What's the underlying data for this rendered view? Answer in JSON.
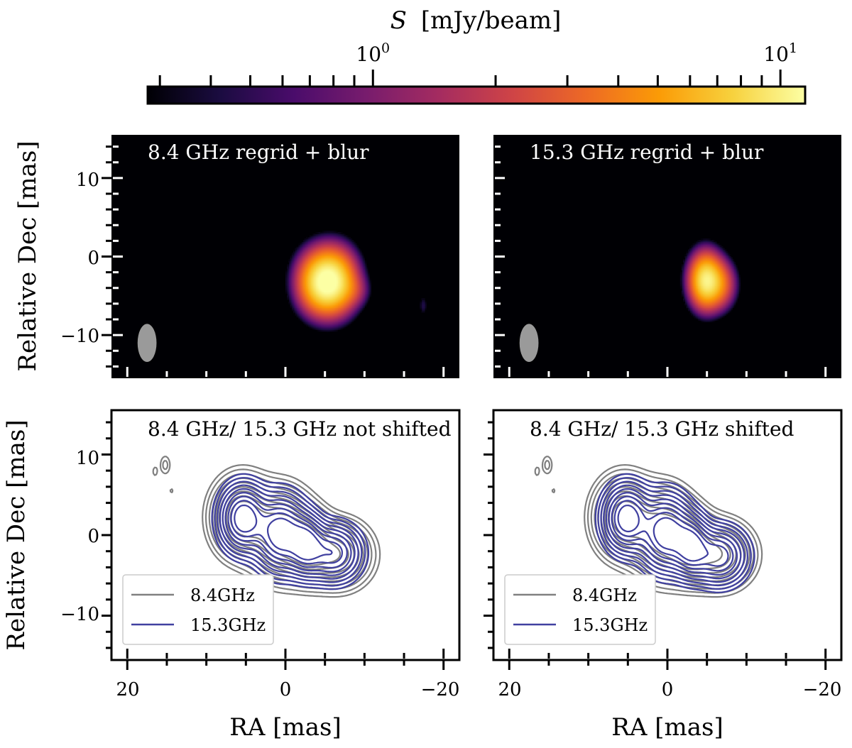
{
  "colorbar": {
    "label_symbol": "S",
    "label_unit": "[mJy/beam]",
    "range": [
      0.28,
      11.5
    ],
    "scale": "log",
    "colormap": "inferno",
    "major_ticks": [
      {
        "value": 1,
        "base": "10",
        "exp": "0"
      },
      {
        "value": 10,
        "base": "10",
        "exp": "1"
      }
    ],
    "minor_ticks": [
      0.3,
      0.4,
      0.5,
      0.6,
      0.7,
      0.8,
      0.9,
      2,
      3,
      4,
      5,
      6,
      7,
      8,
      9
    ]
  },
  "colormap_stops": [
    "#000004",
    "#1b0c41",
    "#4a0c6b",
    "#781c6d",
    "#a52c60",
    "#cf4446",
    "#ed6925",
    "#fb9b06",
    "#f7d13d",
    "#fcffa4"
  ],
  "chart_data": [
    {
      "type": "heatmap",
      "panel": "top-left",
      "annotation": "8.4 GHz regrid + blur",
      "ylabel": "Relative Dec [mas]",
      "xlim": [
        22,
        -22
      ],
      "ylim": [
        -15.5,
        15.5
      ],
      "xticks": [
        20,
        0,
        -20
      ],
      "yticks": [
        10,
        0,
        -10
      ],
      "ytick_labels": [
        "10",
        "0",
        "−10"
      ],
      "beam": {
        "x": 17.5,
        "y": -11,
        "major": 2.2,
        "minor": 1.0
      },
      "blobs": [
        {
          "x": -4.8,
          "y": -3.2,
          "sx": 1.8,
          "sy": 2.3,
          "peak": 11.0
        },
        {
          "x": -6.6,
          "y": -3.0,
          "sx": 1.6,
          "sy": 2.4,
          "peak": 4.0
        },
        {
          "x": -8.6,
          "y": -4.3,
          "sx": 1.2,
          "sy": 1.2,
          "peak": 0.9
        },
        {
          "x": -17.4,
          "y": -6.2,
          "sx": 0.4,
          "sy": 1.0,
          "peak": 0.45
        }
      ]
    },
    {
      "type": "heatmap",
      "panel": "top-right",
      "annotation": "15.3 GHz regrid + blur",
      "xlim": [
        22,
        -22
      ],
      "ylim": [
        -15.5,
        15.5
      ],
      "xticks": [
        20,
        0,
        -20
      ],
      "yticks": [
        10,
        0,
        -10
      ],
      "beam": {
        "x": 17.5,
        "y": -11,
        "major": 2.2,
        "minor": 1.0
      },
      "blobs": [
        {
          "x": -4.8,
          "y": -3.0,
          "sx": 1.2,
          "sy": 2.0,
          "peak": 9.5
        },
        {
          "x": -6.6,
          "y": -3.5,
          "sx": 1.2,
          "sy": 1.8,
          "peak": 3.0
        }
      ]
    },
    {
      "type": "contour",
      "panel": "bottom-left",
      "annotation": "8.4 GHz/ 15.3 GHz not shifted",
      "ylabel": "Relative Dec [mas]",
      "xlabel": "RA [mas]",
      "xlim": [
        22,
        -22
      ],
      "ylim": [
        -15.5,
        15.5
      ],
      "xticks": [
        20,
        0,
        -20
      ],
      "yticks": [
        10,
        0,
        -10
      ],
      "xtick_labels": [
        "20",
        "0",
        "−20"
      ],
      "ytick_labels": [
        "10",
        "0",
        "−10"
      ],
      "legend": {
        "position": "lower-left",
        "entries": [
          "8.4GHz",
          "15.3GHz"
        ]
      },
      "series": [
        {
          "name": "8.4GHz",
          "color": "#808080",
          "components": [
            {
              "x": 5.5,
              "y": 2.2,
              "sx": 2.0,
              "sy": 2.6,
              "peak": 1.0
            },
            {
              "x": 0.6,
              "y": 0.2,
              "sx": 2.2,
              "sy": 2.9,
              "peak": 1.0
            },
            {
              "x": -2.8,
              "y": -1.3,
              "sx": 1.7,
              "sy": 2.3,
              "peak": 0.85
            },
            {
              "x": -6.5,
              "y": -2.4,
              "sx": 2.3,
              "sy": 2.2,
              "peak": 0.75
            },
            {
              "x": 15.2,
              "y": 8.7,
              "sx": 0.5,
              "sy": 0.9,
              "peak": 0.09
            },
            {
              "x": 16.5,
              "y": 7.9,
              "sx": 0.3,
              "sy": 0.6,
              "peak": 0.06
            },
            {
              "x": 14.4,
              "y": 5.5,
              "sx": 0.25,
              "sy": 0.35,
              "peak": 0.055
            }
          ]
        },
        {
          "name": "15.3GHz",
          "color": "#4040a0",
          "components": [
            {
              "x": 5.3,
              "y": 2.1,
              "sx": 1.6,
              "sy": 2.2,
              "peak": 1.0
            },
            {
              "x": 0.6,
              "y": 0.2,
              "sx": 1.8,
              "sy": 2.5,
              "peak": 1.0
            },
            {
              "x": -2.6,
              "y": -1.2,
              "sx": 1.3,
              "sy": 2.0,
              "peak": 0.85
            },
            {
              "x": -6.0,
              "y": -2.2,
              "sx": 1.9,
              "sy": 1.9,
              "peak": 0.75
            }
          ]
        }
      ]
    },
    {
      "type": "contour",
      "panel": "bottom-right",
      "annotation": "8.4 GHz/ 15.3 GHz shifted",
      "xlabel": "RA [mas]",
      "xlim": [
        22,
        -22
      ],
      "ylim": [
        -15.5,
        15.5
      ],
      "xticks": [
        20,
        0,
        -20
      ],
      "yticks": [
        10,
        0,
        -10
      ],
      "xtick_labels": [
        "20",
        "0",
        "−20"
      ],
      "legend": {
        "position": "lower-left",
        "entries": [
          "8.4GHz",
          "15.3GHz"
        ]
      },
      "series": [
        {
          "name": "8.4GHz",
          "color": "#808080",
          "components": [
            {
              "x": 5.5,
              "y": 2.2,
              "sx": 2.0,
              "sy": 2.6,
              "peak": 1.0
            },
            {
              "x": 0.6,
              "y": 0.2,
              "sx": 2.2,
              "sy": 2.9,
              "peak": 1.0
            },
            {
              "x": -2.8,
              "y": -1.3,
              "sx": 1.7,
              "sy": 2.3,
              "peak": 0.85
            },
            {
              "x": -6.5,
              "y": -2.4,
              "sx": 2.3,
              "sy": 2.2,
              "peak": 0.75
            },
            {
              "x": 15.2,
              "y": 8.7,
              "sx": 0.5,
              "sy": 0.9,
              "peak": 0.09
            },
            {
              "x": 16.5,
              "y": 7.9,
              "sx": 0.3,
              "sy": 0.6,
              "peak": 0.06
            },
            {
              "x": 14.4,
              "y": 5.5,
              "sx": 0.25,
              "sy": 0.35,
              "peak": 0.055
            }
          ]
        },
        {
          "name": "15.3GHz",
          "color": "#4040a0",
          "components": [
            {
              "x": 5.1,
              "y": 2.1,
              "sx": 1.6,
              "sy": 2.2,
              "peak": 1.0
            },
            {
              "x": 0.2,
              "y": 0.3,
              "sx": 1.8,
              "sy": 2.5,
              "peak": 1.0
            },
            {
              "x": -3.0,
              "y": -1.4,
              "sx": 1.3,
              "sy": 2.0,
              "peak": 0.85
            },
            {
              "x": -6.5,
              "y": -2.6,
              "sx": 1.9,
              "sy": 1.9,
              "peak": 0.75
            }
          ]
        }
      ]
    }
  ]
}
